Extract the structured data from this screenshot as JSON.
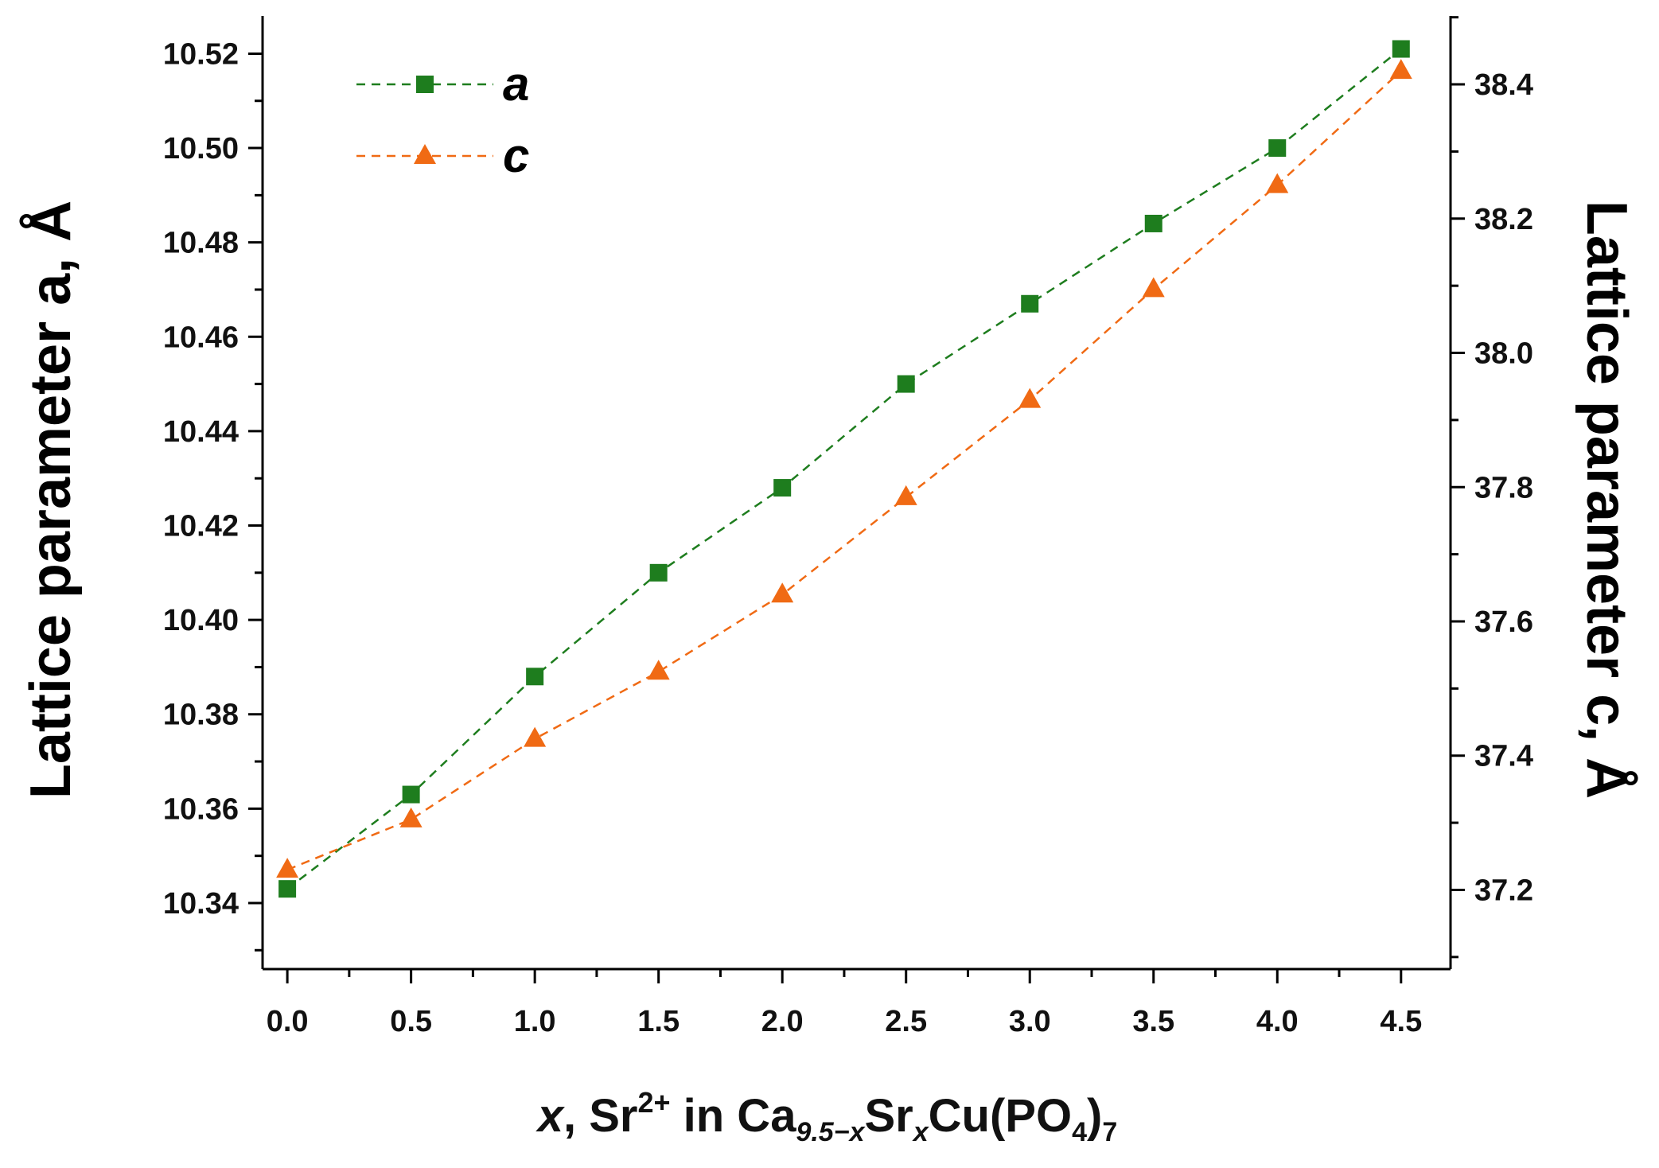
{
  "chart_data": {
    "type": "line",
    "x": [
      0.0,
      0.5,
      1.0,
      1.5,
      2.0,
      2.5,
      3.0,
      3.5,
      4.0,
      4.5
    ],
    "x_tick_labels": [
      "0.0",
      "0.5",
      "1.0",
      "1.5",
      "2.0",
      "2.5",
      "3.0",
      "3.5",
      "4.0",
      "4.5"
    ],
    "xlim": [
      -0.1,
      4.7
    ],
    "xlabel": {
      "italic_x": "x",
      "part1": ", Sr",
      "sup": "2+",
      "part2": " in Ca",
      "sub1": "9.5−x",
      "part3": "Sr",
      "sub2": "x",
      "part4": "Cu(PO",
      "sub3": "4",
      "part5": ")",
      "sub4": "7"
    },
    "y_left": {
      "label": "Lattice parameter a, Å",
      "lim": [
        10.326,
        10.528
      ],
      "ticks": [
        "10.34",
        "10.36",
        "10.38",
        "10.40",
        "10.42",
        "10.44",
        "10.46",
        "10.48",
        "10.50",
        "10.52"
      ]
    },
    "y_right": {
      "label": "Lattice parameter c, Å",
      "lim": [
        37.082,
        38.502
      ],
      "ticks": [
        "37.2",
        "37.4",
        "37.6",
        "37.8",
        "38.0",
        "38.2",
        "38.4"
      ]
    },
    "series": [
      {
        "name": "a",
        "axis": "left",
        "marker": "square",
        "color": "#1e7d1e",
        "values": [
          10.343,
          10.363,
          10.388,
          10.41,
          10.428,
          10.45,
          10.467,
          10.484,
          10.5,
          10.521
        ]
      },
      {
        "name": "c",
        "axis": "right",
        "marker": "triangle",
        "color": "#f06a14",
        "values": [
          37.23,
          37.305,
          37.425,
          37.525,
          37.64,
          37.785,
          37.93,
          38.095,
          38.25,
          38.42
        ]
      }
    ],
    "legend_position": "top-left"
  }
}
